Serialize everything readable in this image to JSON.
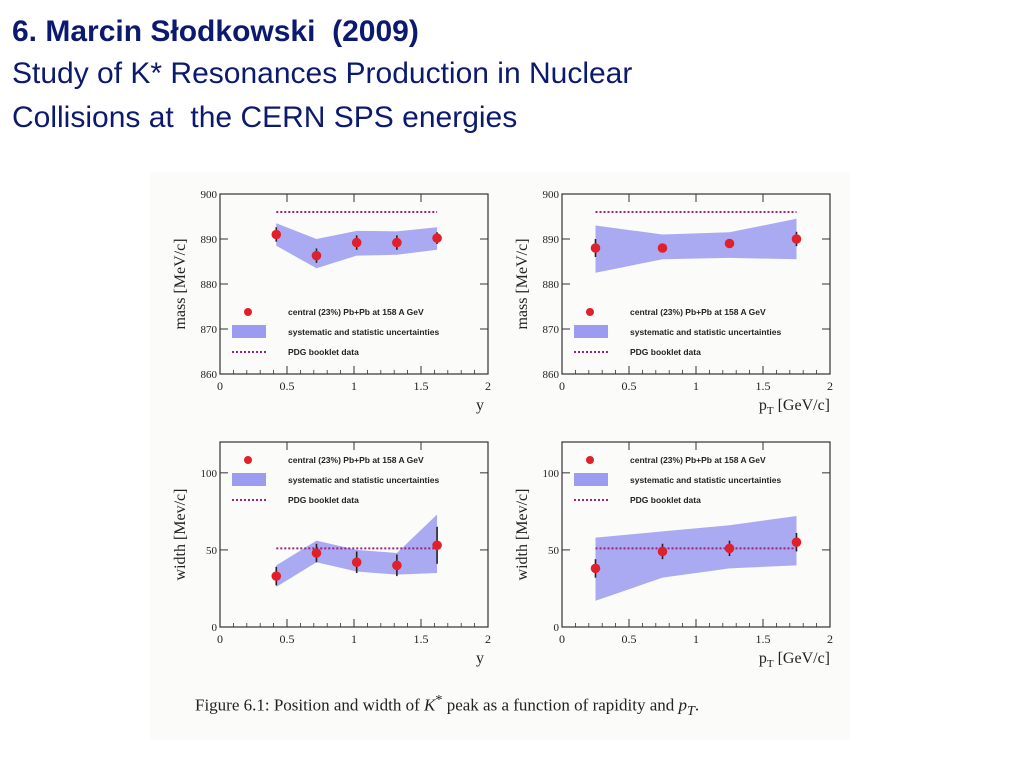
{
  "slide": {
    "heading": "6. Marcin Słodkowski  (2009)",
    "subtitle_line1": "Study of K* Resonances Production in Nuclear",
    "subtitle_line2": "Collisions at  the CERN SPS energies"
  },
  "figure": {
    "caption_prefix": "Figure 6.1: Position and width of ",
    "caption_k": "K",
    "caption_star": "*",
    "caption_mid": " peak as a function of rapidity and ",
    "caption_p": "p",
    "caption_t": "T",
    "caption_end": "."
  },
  "colors": {
    "band": "#9b9bf0",
    "point": "#e0202a",
    "pdg_line": "#a0207a",
    "axis": "#333333"
  },
  "chart_data": [
    {
      "id": "mass-vs-y",
      "type": "scatter",
      "title": "",
      "xlabel": "y",
      "ylabel": "mass [MeV/c]",
      "xlim": [
        0,
        2
      ],
      "ylim": [
        860,
        900
      ],
      "xticks": [
        "0",
        "0.5",
        "1",
        "1.5",
        "2"
      ],
      "yticks": [
        "860",
        "870",
        "880",
        "890",
        "900"
      ],
      "legend_position": "bottom-left",
      "legend": [
        "central (23%) Pb+Pb at 158 A GeV",
        "systematic and statistic uncertainties",
        "PDG booklet data"
      ],
      "series": [
        {
          "name": "central (23%) Pb+Pb at 158 A GeV",
          "x": [
            0.42,
            0.72,
            1.02,
            1.32,
            1.62
          ],
          "y": [
            891.0,
            886.3,
            889.2,
            889.2,
            890.2
          ],
          "yerr": [
            1.6,
            1.6,
            1.6,
            1.6,
            1.3
          ]
        }
      ],
      "band": {
        "name": "systematic and statistic uncertainties",
        "x": [
          0.42,
          0.72,
          1.02,
          1.32,
          1.62
        ],
        "low": [
          888.5,
          883.5,
          886.3,
          886.5,
          887.6
        ],
        "high": [
          893.5,
          890.0,
          891.8,
          891.7,
          892.6
        ]
      },
      "reference": {
        "name": "PDG booklet data",
        "x": [
          0.42,
          1.62
        ],
        "y": 896.0
      }
    },
    {
      "id": "mass-vs-pt",
      "type": "scatter",
      "title": "",
      "xlabel": "pT [GeV/c]",
      "ylabel": "mass [MeV/c]",
      "xlim": [
        0,
        2
      ],
      "ylim": [
        860,
        900
      ],
      "xticks": [
        "0",
        "0.5",
        "1",
        "1.5",
        "2"
      ],
      "yticks": [
        "860",
        "870",
        "880",
        "890",
        "900"
      ],
      "legend_position": "bottom-left",
      "legend": [
        "central (23%) Pb+Pb at 158 A GeV",
        "systematic and statistic uncertainties",
        "PDG booklet data"
      ],
      "series": [
        {
          "name": "central (23%) Pb+Pb at 158 A GeV",
          "x": [
            0.25,
            0.75,
            1.25,
            1.75
          ],
          "y": [
            888.0,
            888.0,
            889.0,
            890.0
          ],
          "yerr": [
            2.0,
            0.6,
            0.6,
            1.6
          ]
        }
      ],
      "band": {
        "name": "systematic and statistic uncertainties",
        "x": [
          0.25,
          0.75,
          1.25,
          1.75
        ],
        "low": [
          882.5,
          885.5,
          885.8,
          885.5
        ],
        "high": [
          893.0,
          891.0,
          891.5,
          894.5
        ]
      },
      "reference": {
        "name": "PDG booklet data",
        "x": [
          0.25,
          1.75
        ],
        "y": 896.0
      }
    },
    {
      "id": "width-vs-y",
      "type": "scatter",
      "title": "",
      "xlabel": "y",
      "ylabel": "width [Mev/c]",
      "xlim": [
        0,
        2
      ],
      "ylim": [
        0,
        120
      ],
      "xticks": [
        "0",
        "0.5",
        "1",
        "1.5",
        "2"
      ],
      "yticks": [
        "0",
        "50",
        "100"
      ],
      "legend_position": "top-left",
      "legend": [
        "central (23%) Pb+Pb at 158 A GeV",
        "systematic and statistic uncertainties",
        "PDG booklet data"
      ],
      "series": [
        {
          "name": "central (23%) Pb+Pb at 158 A GeV",
          "x": [
            0.42,
            0.72,
            1.02,
            1.32,
            1.62
          ],
          "y": [
            33,
            48,
            42,
            40,
            53
          ],
          "yerr": [
            6,
            6,
            7,
            7,
            12
          ]
        }
      ],
      "band": {
        "name": "systematic and statistic uncertainties",
        "x": [
          0.42,
          0.72,
          1.02,
          1.32,
          1.62
        ],
        "low": [
          26,
          42,
          36,
          34,
          35
        ],
        "high": [
          40,
          56,
          50,
          48,
          73
        ]
      },
      "reference": {
        "name": "PDG booklet data",
        "x": [
          0.42,
          1.62
        ],
        "y": 51
      }
    },
    {
      "id": "width-vs-pt",
      "type": "scatter",
      "title": "",
      "xlabel": "pT [GeV/c]",
      "ylabel": "width [Mev/c]",
      "xlim": [
        0,
        2
      ],
      "ylim": [
        0,
        120
      ],
      "xticks": [
        "0",
        "0.5",
        "1",
        "1.5",
        "2"
      ],
      "yticks": [
        "0",
        "50",
        "100"
      ],
      "legend_position": "top-left",
      "legend": [
        "central (23%) Pb+Pb at 158 A GeV",
        "systematic and statistic uncertainties",
        "PDG booklet data"
      ],
      "series": [
        {
          "name": "central (23%) Pb+Pb at 158 A GeV",
          "x": [
            0.25,
            0.75,
            1.25,
            1.75
          ],
          "y": [
            38,
            49,
            51,
            55
          ],
          "yerr": [
            6,
            5,
            5,
            6
          ]
        }
      ],
      "band": {
        "name": "systematic and statistic uncertainties",
        "x": [
          0.25,
          0.75,
          1.25,
          1.75
        ],
        "low": [
          17,
          32,
          38,
          40
        ],
        "high": [
          58,
          62,
          66,
          72
        ]
      },
      "reference": {
        "name": "PDG booklet data",
        "x": [
          0.25,
          1.75
        ],
        "y": 51
      }
    }
  ]
}
